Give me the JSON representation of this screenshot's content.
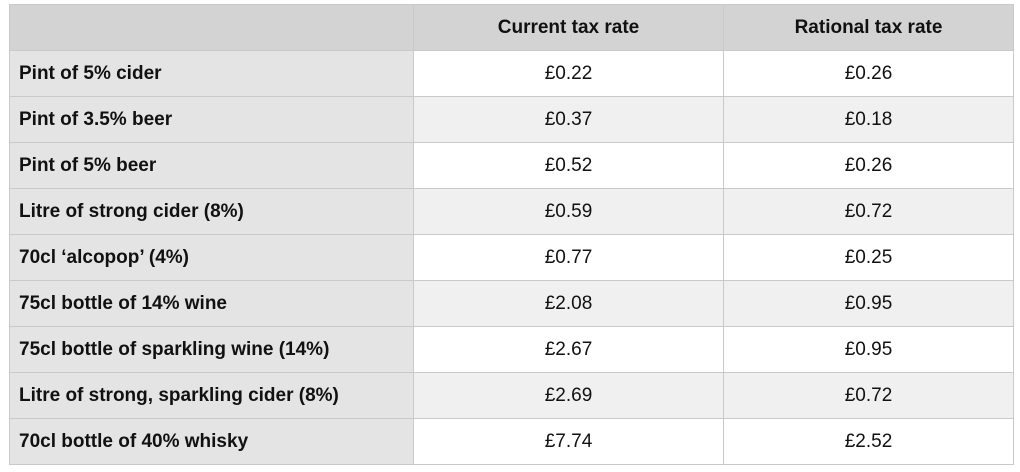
{
  "table": {
    "header": [
      "Current tax rate",
      "Rational tax rate"
    ],
    "rows": [
      [
        "Pint of 5% cider",
        "£0.22",
        "£0.26"
      ],
      [
        "Pint of 3.5% beer",
        "£0.37",
        "£0.18"
      ],
      [
        "Pint of 5% beer",
        "£0.52",
        "£0.26"
      ],
      [
        "Litre of strong cider (8%)",
        "£0.59",
        "£0.72"
      ],
      [
        "70cl ‘alcopop’ (4%)",
        "£0.77",
        "£0.25"
      ],
      [
        "75cl bottle of 14% wine",
        "£2.08",
        "£0.95"
      ],
      [
        "75cl bottle of sparkling wine (14%)",
        "£2.67",
        "£0.95"
      ],
      [
        "Litre of strong, sparkling cider (8%)",
        "£2.69",
        "£0.72"
      ],
      [
        "70cl bottle of 40% whisky",
        "£7.74",
        "£2.52"
      ]
    ]
  }
}
